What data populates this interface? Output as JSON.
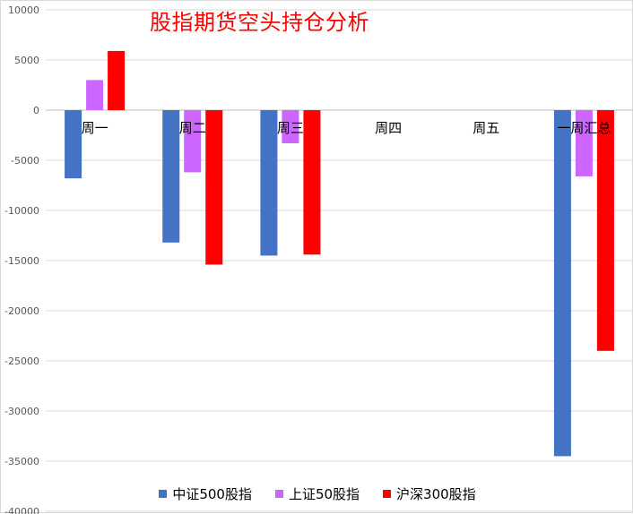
{
  "chart_data": {
    "type": "bar",
    "title": "股指期货空头持仓分析",
    "categories": [
      "周一",
      "周二",
      "周三",
      "周四",
      "周五",
      "一周汇总"
    ],
    "series": [
      {
        "name": "中证500股指",
        "color": "#4472c4",
        "values": [
          -6800,
          -13200,
          -14500,
          null,
          null,
          -34500
        ]
      },
      {
        "name": "上证50股指",
        "color": "#cc66ff",
        "values": [
          3000,
          -6200,
          -3300,
          null,
          null,
          -6600
        ]
      },
      {
        "name": "沪深300股指",
        "color": "#ff0000",
        "values": [
          5900,
          -15400,
          -14400,
          null,
          null,
          -24000
        ]
      }
    ],
    "ylim": [
      -40000,
      10000
    ],
    "yticks": [
      10000,
      5000,
      0,
      -5000,
      -10000,
      -15000,
      -20000,
      -25000,
      -30000,
      -35000,
      -40000
    ],
    "grid": true,
    "legend_position": "bottom"
  }
}
